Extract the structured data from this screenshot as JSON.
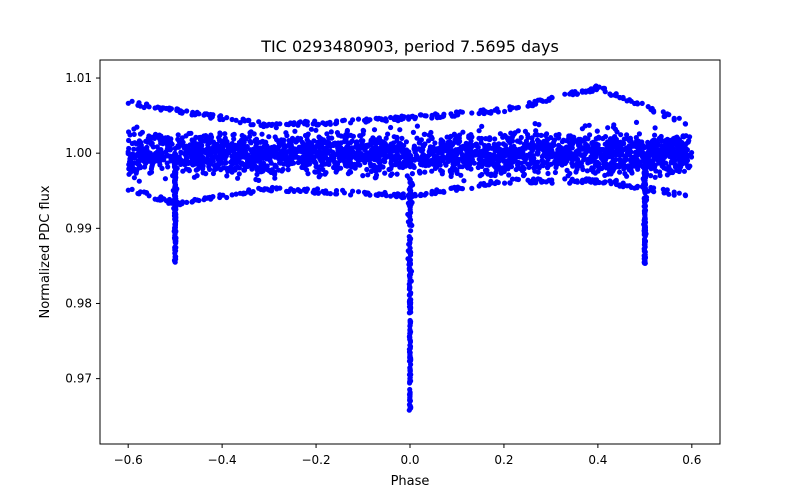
{
  "chart_data": {
    "type": "scatter",
    "title": "TIC 0293480903, period 7.5695 days",
    "xlabel": "Phase",
    "ylabel": "Normalized PDC flux",
    "xlim": [
      -0.66,
      0.66
    ],
    "ylim": [
      0.9613,
      1.0124
    ],
    "xticks": [
      -0.6,
      -0.4,
      -0.2,
      0.0,
      0.2,
      0.4,
      0.6
    ],
    "xtick_labels": [
      "−0.6",
      "−0.4",
      "−0.2",
      "0.0",
      "0.2",
      "0.4",
      "0.6"
    ],
    "yticks": [
      0.97,
      0.98,
      0.99,
      1.0,
      1.01
    ],
    "ytick_labels": [
      "0.97",
      "0.98",
      "0.99",
      "1.00",
      "1.01"
    ],
    "grid": false,
    "series": [
      {
        "name": "PDC flux",
        "color": "#0000ff",
        "marker": "circle",
        "x_range": [
          -0.6,
          0.6
        ],
        "baseline_flux": 1.0,
        "baseline_scatter": 0.0025,
        "upper_envelope": [
          [
            -0.6,
            1.007
          ],
          [
            -0.5,
            1.006
          ],
          [
            -0.3,
            1.004
          ],
          [
            0.0,
            1.005
          ],
          [
            0.2,
            1.006
          ],
          [
            0.4,
            1.009
          ],
          [
            0.6,
            1.004
          ]
        ],
        "lower_envelope": [
          [
            -0.6,
            0.995
          ],
          [
            -0.5,
            0.993
          ],
          [
            -0.3,
            0.995
          ],
          [
            0.0,
            0.994
          ],
          [
            0.2,
            0.996
          ],
          [
            0.4,
            0.996
          ],
          [
            0.6,
            0.994
          ]
        ],
        "eclipses": [
          {
            "label": "primary",
            "phase": 0.0,
            "min_flux": 0.9652,
            "half_width": 0.006
          },
          {
            "label": "secondary",
            "phase": -0.5,
            "min_flux": 0.9853,
            "half_width": 0.006
          },
          {
            "label": "secondary",
            "phase": 0.5,
            "min_flux": 0.9853,
            "half_width": 0.006
          }
        ]
      }
    ]
  }
}
